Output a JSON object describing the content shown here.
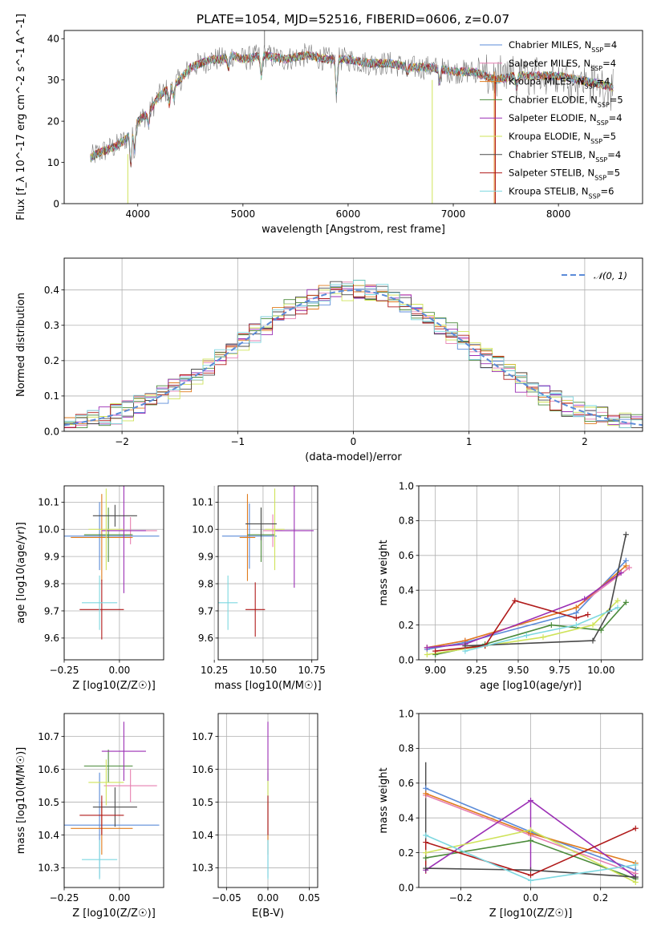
{
  "figure": {
    "title": "PLATE=1054, MJD=52516, FIBERID=0606, z=0.07"
  },
  "colors": {
    "Chabrier MILES": "#5b8bd8",
    "Salpeter MILES": "#e67fb0",
    "Kroupa MILES": "#e07b1d",
    "Chabrier ELODIE": "#4b8b3b",
    "Salpeter ELODIE": "#9b2fb5",
    "Kroupa ELODIE": "#cfe35a",
    "Chabrier STELIB": "#4a4a4a",
    "Salpeter STELIB": "#b01a1a",
    "Kroupa STELIB": "#7dd8e0"
  },
  "chart_data": [
    {
      "id": "spectrum",
      "type": "line",
      "title": "PLATE=1054, MJD=52516, FIBERID=0606, z=0.07",
      "xlabel": "wavelength [Angstrom, rest frame]",
      "ylabel": "Flux [f_λ 10^-17 erg cm^-2 s^-1 A^-1]",
      "xlim": [
        3300,
        8800
      ],
      "ylim": [
        0,
        42
      ],
      "xticks": [
        4000,
        5000,
        6000,
        7000,
        8000
      ],
      "yticks": [
        0,
        10,
        20,
        30,
        40
      ],
      "grid": false,
      "legend_position": "top-right",
      "continuum": {
        "x": [
          3550,
          3600,
          3700,
          3800,
          3900,
          4000,
          4100,
          4200,
          4300,
          4400,
          4500,
          4600,
          4700,
          4800,
          4900,
          5000,
          5200,
          5400,
          5600,
          5800,
          6000,
          6200,
          6400,
          6600,
          6800,
          7000,
          7200,
          7400,
          7600,
          7800,
          8000,
          8200,
          8400,
          8520
        ],
        "y": [
          11,
          12,
          13,
          14,
          16,
          20,
          22,
          26,
          28,
          30,
          33,
          34,
          35,
          35,
          36,
          35,
          36,
          35,
          36,
          35,
          35,
          34,
          34,
          33,
          33,
          32,
          32,
          30,
          31,
          31,
          31,
          30,
          29,
          28
        ]
      },
      "series": [
        {
          "name": "Chabrier MILES",
          "nssp": "4"
        },
        {
          "name": "Salpeter MILES",
          "nssp": "4"
        },
        {
          "name": "Kroupa MILES",
          "nssp": "4"
        },
        {
          "name": "Chabrier ELODIE",
          "nssp": "5"
        },
        {
          "name": "Salpeter ELODIE",
          "nssp": "4"
        },
        {
          "name": "Kroupa ELODIE",
          "nssp": "5"
        },
        {
          "name": "Chabrier STELIB",
          "nssp": "4"
        },
        {
          "name": "Salpeter STELIB",
          "nssp": "5"
        },
        {
          "name": "Kroupa STELIB",
          "nssp": "6"
        }
      ],
      "nssp_label": "N"
    },
    {
      "id": "residuals",
      "type": "line",
      "xlabel": "(data-model)/error",
      "ylabel": "Normed distribution",
      "xlim": [
        -2.5,
        2.5
      ],
      "ylim": [
        0,
        0.49
      ],
      "xticks": [
        -2,
        -1,
        0,
        1,
        2
      ],
      "yticks": [
        0.0,
        0.1,
        0.2,
        0.3,
        0.4
      ],
      "grid": true,
      "legend_position": "top-right",
      "reference_label": "𝒩(0, 1)",
      "bin_width": 0.1
    },
    {
      "id": "age-vs-Z",
      "type": "scatter",
      "xlabel": "Z [log10(Z/Z☉)]",
      "ylabel": "age  [log10(age/yr)]",
      "xlim": [
        -0.25,
        0.2
      ],
      "ylim": [
        9.52,
        10.16
      ],
      "xticks": [
        -0.25,
        0.0
      ],
      "yticks": [
        9.6,
        9.7,
        9.8,
        9.9,
        10.0,
        10.1
      ],
      "grid": true,
      "points": [
        {
          "series": "Chabrier MILES",
          "x": -0.09,
          "xerr": 0.27,
          "y": 9.975,
          "yerr": 0.125
        },
        {
          "series": "Salpeter MILES",
          "x": 0.05,
          "xerr": 0.12,
          "y": 9.995,
          "yerr": 0.05
        },
        {
          "series": "Kroupa MILES",
          "x": -0.08,
          "xerr": 0.14,
          "y": 9.97,
          "yerr": 0.16
        },
        {
          "series": "Chabrier ELODIE",
          "x": -0.05,
          "xerr": 0.11,
          "y": 9.98,
          "yerr": 0.1
        },
        {
          "series": "Salpeter ELODIE",
          "x": 0.02,
          "xerr": 0.1,
          "y": 9.995,
          "yerr": 0.23
        },
        {
          "series": "Kroupa ELODIE",
          "x": -0.06,
          "xerr": 0.08,
          "y": 10.0,
          "yerr": 0.15
        },
        {
          "series": "Chabrier STELIB",
          "x": -0.02,
          "xerr": 0.1,
          "y": 10.05,
          "yerr": 0.04
        },
        {
          "series": "Salpeter STELIB",
          "x": -0.08,
          "xerr": 0.1,
          "y": 9.705,
          "yerr": 0.11
        },
        {
          "series": "Kroupa STELIB",
          "x": -0.09,
          "xerr": 0.08,
          "y": 9.73,
          "yerr": 0.1
        }
      ]
    },
    {
      "id": "age-vs-mass",
      "type": "scatter",
      "xlabel": "mass [log10(M/M☉)]",
      "ylabel": "",
      "xlim": [
        10.27,
        10.78
      ],
      "ylim": [
        9.52,
        10.16
      ],
      "xticks": [
        10.25,
        10.5,
        10.75
      ],
      "yticks": [
        9.6,
        9.7,
        9.8,
        9.9,
        10.0,
        10.1
      ],
      "grid": true,
      "points": [
        {
          "series": "Chabrier MILES",
          "x": 10.43,
          "xerr": 0.14,
          "y": 9.975,
          "yerr": 0.12
        },
        {
          "series": "Salpeter MILES",
          "x": 10.55,
          "xerr": 0.05,
          "y": 9.995,
          "yerr": 0.06
        },
        {
          "series": "Kroupa MILES",
          "x": 10.42,
          "xerr": 0.04,
          "y": 9.97,
          "yerr": 0.16
        },
        {
          "series": "Chabrier ELODIE",
          "x": 10.49,
          "xerr": 0.07,
          "y": 9.98,
          "yerr": 0.1
        },
        {
          "series": "Salpeter ELODIE",
          "x": 10.66,
          "xerr": 0.1,
          "y": 9.995,
          "yerr": 0.21
        },
        {
          "series": "Kroupa ELODIE",
          "x": 10.56,
          "xerr": 0.05,
          "y": 10.0,
          "yerr": 0.15
        },
        {
          "series": "Chabrier STELIB",
          "x": 10.49,
          "xerr": 0.08,
          "y": 10.02,
          "yerr": 0.06
        },
        {
          "series": "Salpeter STELIB",
          "x": 10.46,
          "xerr": 0.05,
          "y": 9.705,
          "yerr": 0.1
        },
        {
          "series": "Kroupa STELIB",
          "x": 10.32,
          "xerr": 0.05,
          "y": 9.73,
          "yerr": 0.1
        }
      ]
    },
    {
      "id": "mass-weight-vs-age",
      "type": "line",
      "xlabel": "age  [log10(age/yr)]",
      "ylabel": "mass weight",
      "xlim": [
        8.9,
        10.25
      ],
      "ylim": [
        0,
        1.0
      ],
      "xticks": [
        9.0,
        9.25,
        9.5,
        9.75,
        10.0
      ],
      "yticks": [
        0.0,
        0.2,
        0.4,
        0.6,
        0.8,
        1.0
      ],
      "grid": true,
      "series": [
        {
          "name": "Chabrier MILES",
          "x": [
            8.95,
            9.18,
            9.85,
            10.15
          ],
          "y": [
            0.06,
            0.1,
            0.27,
            0.57
          ]
        },
        {
          "name": "Salpeter MILES",
          "x": [
            8.95,
            9.18,
            9.85,
            10.17
          ],
          "y": [
            0.07,
            0.11,
            0.3,
            0.53
          ]
        },
        {
          "name": "Kroupa MILES",
          "x": [
            8.95,
            9.18,
            9.85,
            10.15
          ],
          "y": [
            0.07,
            0.11,
            0.3,
            0.54
          ]
        },
        {
          "name": "Chabrier ELODIE",
          "x": [
            9.0,
            9.3,
            9.7,
            10.0,
            10.15
          ],
          "y": [
            0.03,
            0.09,
            0.2,
            0.17,
            0.33
          ]
        },
        {
          "name": "Salpeter ELODIE",
          "x": [
            8.95,
            9.18,
            9.9,
            10.12
          ],
          "y": [
            0.07,
            0.09,
            0.35,
            0.5
          ]
        },
        {
          "name": "Kroupa ELODIE",
          "x": [
            8.95,
            9.3,
            9.65,
            9.95,
            10.1
          ],
          "y": [
            0.03,
            0.08,
            0.13,
            0.2,
            0.34
          ]
        },
        {
          "name": "Chabrier STELIB",
          "x": [
            9.18,
            9.95,
            10.05,
            10.15
          ],
          "y": [
            0.08,
            0.11,
            0.28,
            0.72
          ]
        },
        {
          "name": "Salpeter STELIB",
          "x": [
            9.0,
            9.3,
            9.48,
            9.85,
            9.92
          ],
          "y": [
            0.05,
            0.08,
            0.34,
            0.24,
            0.26
          ]
        },
        {
          "name": "Kroupa STELIB",
          "x": [
            9.18,
            9.55,
            9.85,
            10.1
          ],
          "y": [
            0.05,
            0.14,
            0.2,
            0.3
          ]
        }
      ]
    },
    {
      "id": "mass-vs-Z",
      "type": "scatter",
      "xlabel": "Z [log10(Z/Z☉)]",
      "ylabel": "mass [log10(M/M☉)]",
      "xlim": [
        -0.25,
        0.2
      ],
      "ylim": [
        10.24,
        10.77
      ],
      "xticks": [
        -0.25,
        0.0
      ],
      "yticks": [
        10.3,
        10.4,
        10.5,
        10.6,
        10.7
      ],
      "grid": true,
      "points": [
        {
          "series": "Chabrier MILES",
          "x": -0.09,
          "xerr": 0.27,
          "y": 10.43,
          "yerr": 0.16
        },
        {
          "series": "Salpeter MILES",
          "x": 0.05,
          "xerr": 0.12,
          "y": 10.55,
          "yerr": 0.05
        },
        {
          "series": "Kroupa MILES",
          "x": -0.08,
          "xerr": 0.14,
          "y": 10.42,
          "yerr": 0.08
        },
        {
          "series": "Chabrier ELODIE",
          "x": -0.05,
          "xerr": 0.11,
          "y": 10.61,
          "yerr": 0.05
        },
        {
          "series": "Salpeter ELODIE",
          "x": 0.02,
          "xerr": 0.1,
          "y": 10.655,
          "yerr": 0.09
        },
        {
          "series": "Kroupa ELODIE",
          "x": -0.06,
          "xerr": 0.08,
          "y": 10.56,
          "yerr": 0.07
        },
        {
          "series": "Chabrier STELIB",
          "x": -0.02,
          "xerr": 0.1,
          "y": 10.485,
          "yerr": 0.06
        },
        {
          "series": "Salpeter STELIB",
          "x": -0.08,
          "xerr": 0.1,
          "y": 10.46,
          "yerr": 0.06
        },
        {
          "series": "Kroupa STELIB",
          "x": -0.09,
          "xerr": 0.08,
          "y": 10.325,
          "yerr": 0.06
        }
      ]
    },
    {
      "id": "mass-vs-EBV",
      "type": "scatter",
      "xlabel": "E(B-V)",
      "ylabel": "",
      "xlim": [
        -0.06,
        0.06
      ],
      "ylim": [
        10.24,
        10.77
      ],
      "xticks": [
        -0.05,
        0.0,
        0.05
      ],
      "yticks": [
        10.3,
        10.4,
        10.5,
        10.6,
        10.7
      ],
      "grid": true,
      "points": [
        {
          "series": "Chabrier MILES",
          "x": 0.0,
          "xerr": 0.0,
          "y": 10.43,
          "yerr": 0.16
        },
        {
          "series": "Kroupa MILES",
          "x": 0.0,
          "xerr": 0.0,
          "y": 10.42,
          "yerr": 0.08
        },
        {
          "series": "Kroupa ELODIE",
          "x": 0.0,
          "xerr": 0.0,
          "y": 10.56,
          "yerr": 0.07
        },
        {
          "series": "Salpeter ELODIE",
          "x": 0.0,
          "xerr": 0.0,
          "y": 10.655,
          "yerr": 0.09
        },
        {
          "series": "Salpeter STELIB",
          "x": 0.0,
          "xerr": 0.0,
          "y": 10.46,
          "yerr": 0.06
        },
        {
          "series": "Kroupa STELIB",
          "x": 0.0,
          "xerr": 0.0,
          "y": 10.325,
          "yerr": 0.06
        }
      ]
    },
    {
      "id": "mass-weight-vs-Z",
      "type": "line",
      "xlabel": "Z [log10(Z/Z☉)]",
      "ylabel": "mass weight",
      "xlim": [
        -0.32,
        0.32
      ],
      "ylim": [
        0,
        1.0
      ],
      "xticks": [
        -0.2,
        0.0,
        0.2
      ],
      "yticks": [
        0.0,
        0.2,
        0.4,
        0.6,
        0.8,
        1.0
      ],
      "grid": true,
      "series": [
        {
          "name": "Chabrier MILES",
          "x": [
            -0.3,
            0.0,
            0.3
          ],
          "y": [
            0.57,
            0.32,
            0.1
          ]
        },
        {
          "name": "Salpeter MILES",
          "x": [
            -0.3,
            0.0,
            0.3
          ],
          "y": [
            0.53,
            0.3,
            0.08
          ]
        },
        {
          "name": "Kroupa MILES",
          "x": [
            -0.3,
            0.0,
            0.3
          ],
          "y": [
            0.54,
            0.31,
            0.14
          ]
        },
        {
          "name": "Chabrier ELODIE",
          "x": [
            -0.3,
            0.0,
            0.3
          ],
          "y": [
            0.17,
            0.27,
            0.05
          ]
        },
        {
          "name": "Salpeter ELODIE",
          "x": [
            -0.3,
            0.0,
            0.3
          ],
          "y": [
            0.1,
            0.5,
            0.06
          ]
        },
        {
          "name": "Kroupa ELODIE",
          "x": [
            -0.3,
            0.0,
            0.3
          ],
          "y": [
            0.2,
            0.33,
            0.03
          ]
        },
        {
          "name": "Chabrier STELIB",
          "x": [
            -0.3,
            0.0,
            0.3
          ],
          "y": [
            0.11,
            0.1,
            0.06
          ]
        },
        {
          "name": "Salpeter STELIB",
          "x": [
            -0.3,
            0.0,
            0.3
          ],
          "y": [
            0.26,
            0.07,
            0.34
          ]
        },
        {
          "name": "Kroupa STELIB",
          "x": [
            -0.3,
            0.0,
            0.3
          ],
          "y": [
            0.3,
            0.04,
            0.13
          ]
        }
      ],
      "stems": [
        {
          "series": "Chabrier STELIB",
          "x": -0.3,
          "y0": 0.11,
          "y1": 0.72
        },
        {
          "series": "Salpeter STELIB",
          "x": -0.3,
          "y0": 0.08,
          "y1": 0.26
        },
        {
          "series": "Salpeter ELODIE",
          "x": 0.0,
          "y0": 0.1,
          "y1": 0.5
        },
        {
          "series": "Kroupa MILES",
          "x": 0.3,
          "y0": 0.05,
          "y1": 0.14
        }
      ]
    }
  ]
}
